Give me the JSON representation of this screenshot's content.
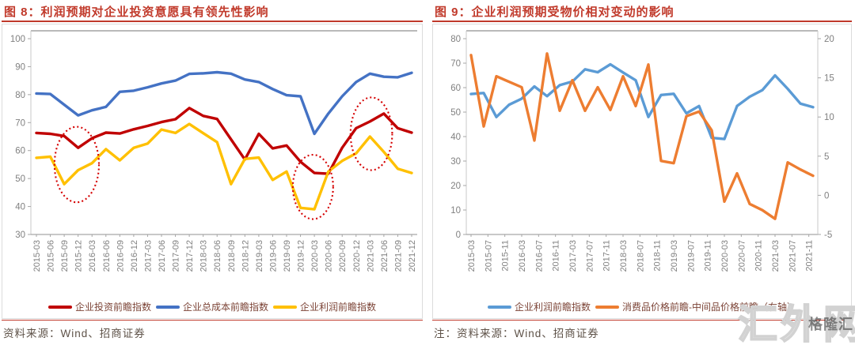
{
  "panels": [
    {
      "source": "资料来源：Wind、招商证券"
    },
    {
      "source": "注：资料来源：Wind、招商证券"
    }
  ],
  "watermark": {
    "large": "汇外网",
    "small": "格隆汇"
  },
  "colors": {
    "title_red": "#C13A2B",
    "rule_red": "#C0392B",
    "axis_gray": "#A6A6A6",
    "label_gray": "#808080",
    "annotation_red": "#D50000"
  },
  "chart_data": [
    {
      "type": "line",
      "title": "图 8：利润预期对企业投资意愿具有领先性影响",
      "categories": [
        "2015-03",
        "2015-06",
        "2015-09",
        "2015-12",
        "2016-03",
        "2016-06",
        "2016-09",
        "2016-12",
        "2017-03",
        "2017-06",
        "2017-09",
        "2017-12",
        "2018-03",
        "2018-06",
        "2018-09",
        "2018-12",
        "2019-03",
        "2019-06",
        "2019-09",
        "2019-12",
        "2020-03",
        "2020-06",
        "2020-09",
        "2020-12",
        "2021-03",
        "2021-06",
        "2021-09",
        "2021-12"
      ],
      "ylim": [
        30,
        100
      ],
      "ystep": 10,
      "grid": false,
      "legend_position": "bottom",
      "series": [
        {
          "name": "企业投资前瞻指数",
          "color": "#C00000",
          "values": [
            66.3,
            66.0,
            65.2,
            61.0,
            64.4,
            66.4,
            66.1,
            67.6,
            68.8,
            70.2,
            71.2,
            75.2,
            72.4,
            71.3,
            64.0,
            56.8,
            66.0,
            60.8,
            61.8,
            56.0,
            52.0,
            51.7,
            61.0,
            68.0,
            70.4,
            73.2,
            68.0,
            66.4
          ]
        },
        {
          "name": "企业总成本前瞻指数",
          "color": "#4472C4",
          "values": [
            80.4,
            80.2,
            76.4,
            72.6,
            74.4,
            75.6,
            81.0,
            81.4,
            82.6,
            84.0,
            85.0,
            87.4,
            87.6,
            88.0,
            87.5,
            85.4,
            84.5,
            82.0,
            79.8,
            79.4,
            66.0,
            73.2,
            79.4,
            84.5,
            87.5,
            86.4,
            86.2,
            87.8
          ]
        },
        {
          "name": "企业利润前瞻指数",
          "color": "#FFC000",
          "values": [
            57.4,
            57.8,
            48.0,
            53.0,
            55.5,
            60.5,
            56.5,
            61.0,
            62.5,
            67.5,
            66.3,
            69.5,
            66.2,
            63.0,
            48.0,
            57.0,
            57.5,
            49.5,
            52.5,
            39.5,
            39.0,
            52.5,
            56.3,
            59.0,
            65.0,
            59.5,
            53.5,
            52.0
          ]
        }
      ],
      "annotations": {
        "color": "#D50000",
        "ellipses": [
          {
            "cx_index": 2.9,
            "cy_value": 55,
            "rx_index": 1.6,
            "ry_value": 13.5
          },
          {
            "cx_index": 19.9,
            "cy_value": 47,
            "rx_index": 1.45,
            "ry_value": 11.5
          },
          {
            "cx_index": 24.1,
            "cy_value": 66,
            "rx_index": 1.5,
            "ry_value": 13.0
          }
        ]
      }
    },
    {
      "type": "line",
      "title": "图 9：企业利润预期受物价相对变动的影响",
      "categories": [
        "2015-03",
        "2015-06",
        "2015-09",
        "2015-12",
        "2016-03",
        "2016-06",
        "2016-09",
        "2016-12",
        "2017-03",
        "2017-06",
        "2017-09",
        "2017-12",
        "2018-03",
        "2018-06",
        "2018-09",
        "2018-12",
        "2019-03",
        "2019-06",
        "2019-09",
        "2019-12",
        "2020-03",
        "2020-06",
        "2020-09",
        "2020-12",
        "2021-03",
        "2021-06",
        "2021-09",
        "2021-12"
      ],
      "x_tick_labels": [
        "2015-03",
        "2015-07",
        "2015-11",
        "2016-03",
        "2016-07",
        "2016-11",
        "2017-03",
        "2017-07",
        "2017-11",
        "2018-03",
        "2018-07",
        "2018-11",
        "2019-03",
        "2019-07",
        "2019-11",
        "2020-03",
        "2020-07",
        "2020-11",
        "2021-03",
        "2021-07",
        "2021-11"
      ],
      "ylim_left": [
        0,
        80
      ],
      "ystep_left": 10,
      "ylim_right": [
        -5,
        20
      ],
      "ystep_right": 5,
      "grid": false,
      "legend_position": "bottom",
      "series": [
        {
          "name": "企业利润前瞻指数",
          "color": "#5B9BD5",
          "axis": "left",
          "values": [
            57.4,
            57.8,
            48.0,
            53.0,
            55.5,
            60.5,
            56.5,
            61.0,
            62.5,
            67.5,
            66.3,
            69.5,
            66.2,
            63.0,
            48.0,
            57.0,
            57.5,
            49.5,
            52.5,
            39.5,
            39.0,
            52.5,
            56.3,
            59.0,
            65.0,
            59.5,
            53.5,
            52.0
          ]
        },
        {
          "name": "消费品价格前瞻-中间品价格前瞻（右轴）",
          "color": "#ED7D31",
          "axis": "right",
          "values": [
            17.9,
            8.8,
            15.2,
            14.5,
            13.8,
            7.0,
            18.1,
            10.8,
            14.7,
            10.8,
            13.8,
            10.9,
            15.2,
            11.4,
            16.7,
            4.4,
            4.1,
            10.1,
            10.7,
            8.3,
            -0.8,
            2.8,
            -1.1,
            -1.9,
            -3.0,
            4.2,
            3.3,
            2.5
          ]
        }
      ]
    }
  ]
}
